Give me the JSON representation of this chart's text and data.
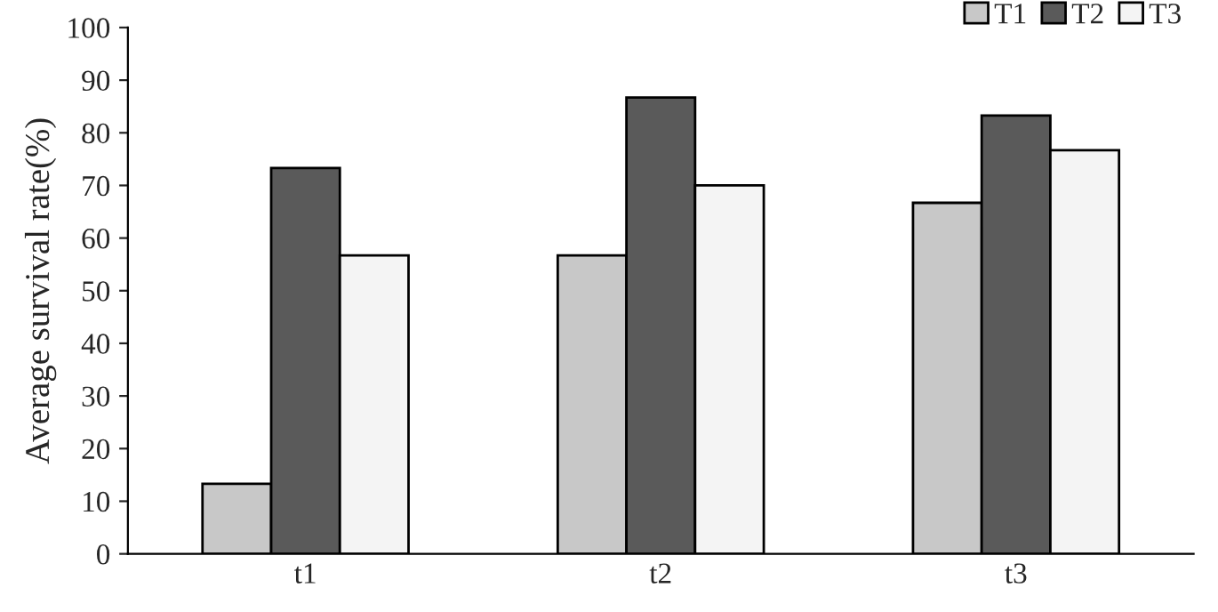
{
  "chart_data": {
    "type": "bar",
    "ylabel": "Average survival rate(%)",
    "categories": [
      "t1",
      "t2",
      "t3"
    ],
    "series": [
      {
        "name": "T1",
        "color": "#c8c8c8",
        "values": [
          13.3,
          56.7,
          66.7
        ]
      },
      {
        "name": "T2",
        "color": "#5a5a5a",
        "values": [
          73.3,
          86.7,
          83.3
        ]
      },
      {
        "name": "T3",
        "color": "#f4f4f4",
        "values": [
          56.7,
          70,
          76.7
        ]
      }
    ],
    "ylim": [
      0,
      100
    ],
    "yticks": [
      0,
      10,
      20,
      30,
      40,
      50,
      60,
      70,
      80,
      90,
      100
    ],
    "grid": false,
    "legend": "top right"
  }
}
